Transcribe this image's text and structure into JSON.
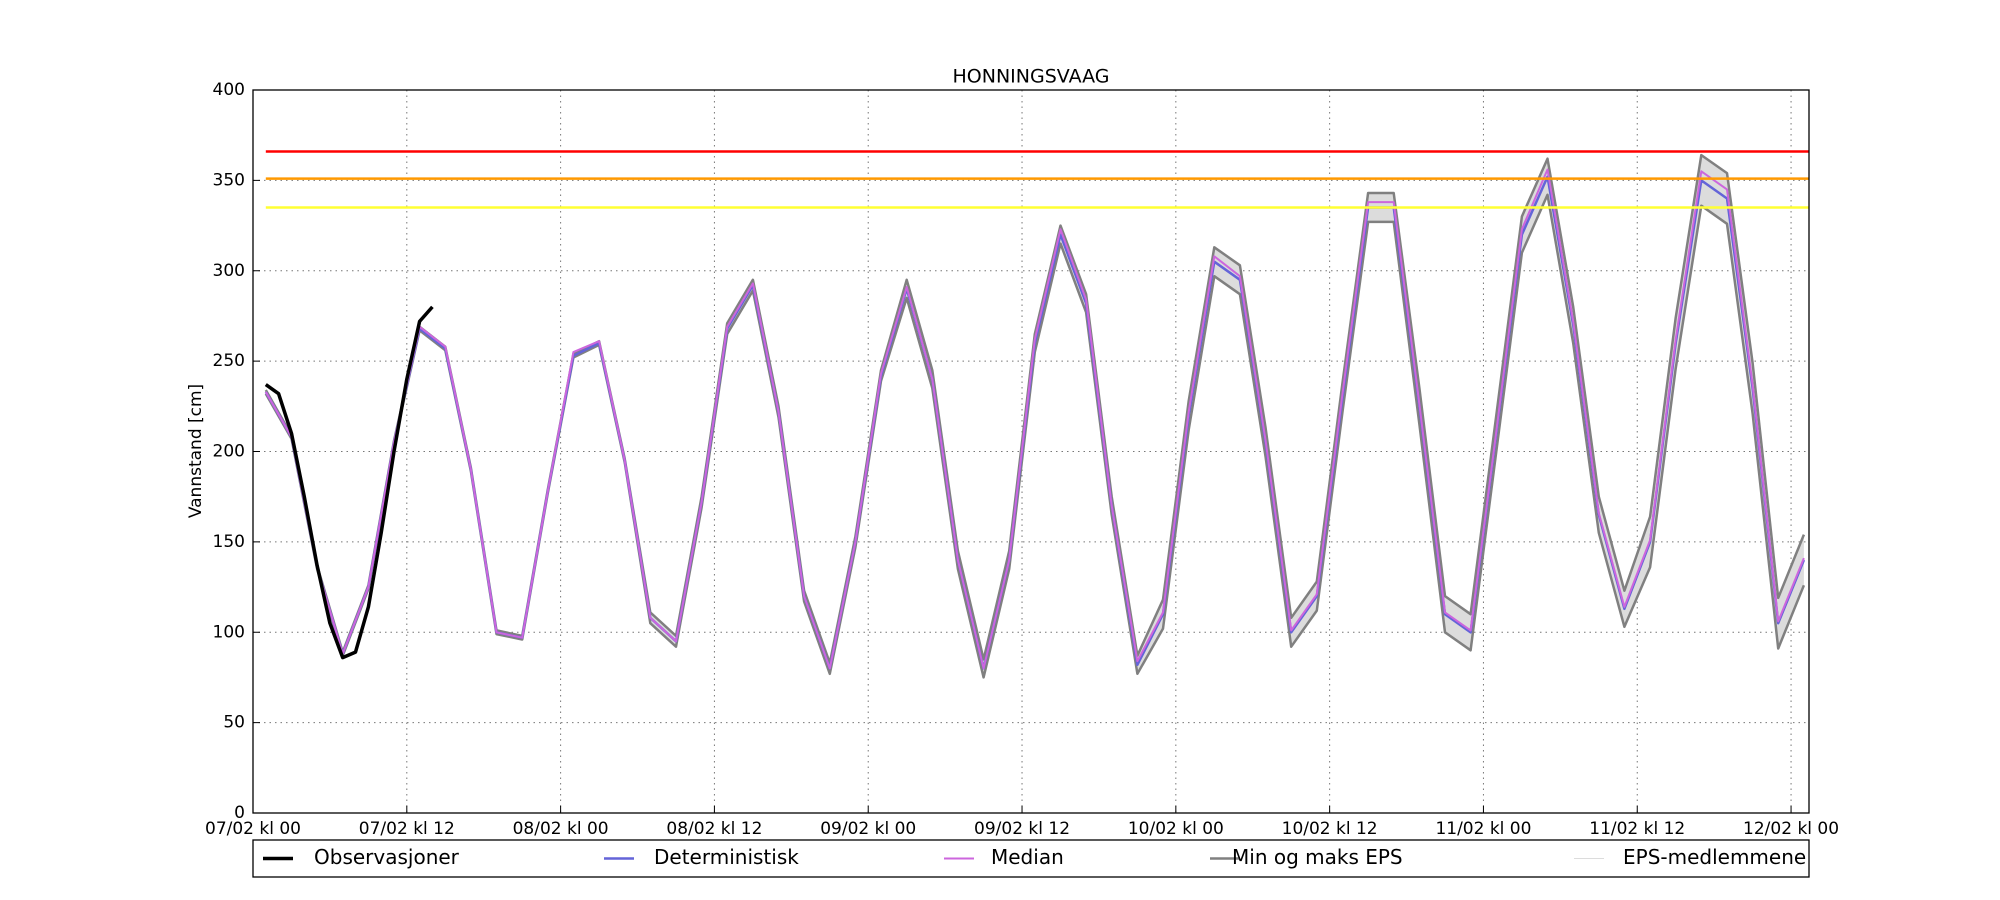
{
  "chart_data": {
    "type": "line",
    "title": "HONNINGSVAAG",
    "y_label": "Vannstand [cm]",
    "xlim": [
      0,
      121.4
    ],
    "ylim": [
      0,
      400
    ],
    "grid": true,
    "yticks": [
      0,
      50,
      100,
      150,
      200,
      250,
      300,
      350,
      400
    ],
    "xticks": [
      {
        "value": 0,
        "label": "07/02 kl 00"
      },
      {
        "value": 12,
        "label": "07/02 kl 12"
      },
      {
        "value": 24,
        "label": "08/02 kl 00"
      },
      {
        "value": 36,
        "label": "08/02 kl 12"
      },
      {
        "value": 48,
        "label": "09/02 kl 00"
      },
      {
        "value": 60,
        "label": "09/02 kl 12"
      },
      {
        "value": 72,
        "label": "10/02 kl 00"
      },
      {
        "value": 84,
        "label": "10/02 kl 12"
      },
      {
        "value": 96,
        "label": "11/02 kl 00"
      },
      {
        "value": 108,
        "label": "11/02 kl 12"
      },
      {
        "value": 120,
        "label": "12/02 kl 00"
      }
    ],
    "thresholds": [
      {
        "value": 366,
        "color": "#ff0000"
      },
      {
        "value": 351,
        "color": "#ff9900"
      },
      {
        "value": 335,
        "color": "#ffff33"
      }
    ],
    "threshold_start": 1,
    "x": [
      1,
      3,
      5,
      7,
      9,
      11,
      13,
      15,
      17,
      19,
      21,
      23,
      25,
      27,
      29,
      31,
      33,
      35,
      37,
      39,
      41,
      43,
      45,
      47,
      49,
      51,
      53,
      55,
      57,
      59,
      61,
      63,
      65,
      67,
      69,
      71,
      73,
      75,
      77,
      79,
      81,
      83,
      85,
      87,
      89,
      91,
      93,
      95,
      97,
      99,
      101,
      103,
      105,
      107,
      109,
      111,
      113,
      115,
      117,
      119,
      121
    ],
    "series": [
      {
        "name": "Observasjoner",
        "color": "#000000",
        "x": [
          1,
          2,
          3,
          4,
          5,
          6,
          7,
          8,
          9,
          10,
          11,
          12,
          13,
          14
        ],
        "values": [
          237,
          232,
          210,
          175,
          137,
          105,
          86,
          89,
          114,
          155,
          200,
          240,
          272,
          280
        ]
      },
      {
        "name": "Deterministisk",
        "color": "#6464d8",
        "values": [
          233,
          208,
          136,
          88,
          125,
          205,
          268,
          257,
          190,
          100,
          97,
          178,
          253,
          260,
          195,
          108,
          95,
          172,
          268,
          292,
          222,
          120,
          80,
          150,
          242,
          290,
          240,
          140,
          80,
          140,
          260,
          320,
          282,
          170,
          82,
          110,
          220,
          305,
          295,
          205,
          100,
          120,
          230,
          335,
          335,
          225,
          110,
          100,
          210,
          320,
          352,
          270,
          165,
          113,
          150,
          260,
          350,
          340,
          235,
          105,
          140
        ]
      },
      {
        "name": "Median",
        "color": "#cc66dd",
        "values": [
          233,
          208,
          136,
          88,
          125,
          205,
          269,
          258,
          190,
          100,
          97,
          178,
          255,
          261,
          195,
          108,
          95,
          172,
          269,
          293,
          222,
          120,
          80,
          150,
          243,
          291,
          240,
          140,
          80,
          140,
          262,
          323,
          284,
          170,
          84,
          111,
          222,
          308,
          297,
          206,
          101,
          121,
          232,
          338,
          338,
          226,
          111,
          101,
          211,
          323,
          356,
          272,
          166,
          114,
          151,
          262,
          355,
          345,
          237,
          106,
          141
        ]
      },
      {
        "name": "Min og maks EPS",
        "color": "#808080",
        "min": [
          232,
          207,
          135,
          87,
          124,
          204,
          267,
          256,
          189,
          99,
          96,
          177,
          252,
          259,
          194,
          105,
          92,
          169,
          265,
          289,
          219,
          117,
          77,
          147,
          239,
          285,
          235,
          135,
          75,
          135,
          255,
          315,
          277,
          165,
          77,
          102,
          212,
          297,
          287,
          197,
          92,
          112,
          222,
          327,
          327,
          215,
          100,
          90,
          200,
          310,
          342,
          260,
          155,
          103,
          136,
          246,
          336,
          326,
          221,
          91,
          126
        ],
        "max": [
          234,
          209,
          137,
          89,
          126,
          206,
          269,
          258,
          191,
          101,
          98,
          179,
          254,
          261,
          196,
          111,
          98,
          175,
          271,
          295,
          225,
          123,
          83,
          153,
          245,
          295,
          245,
          145,
          85,
          145,
          265,
          325,
          287,
          175,
          87,
          118,
          228,
          313,
          303,
          213,
          108,
          128,
          238,
          343,
          343,
          235,
          120,
          110,
          220,
          330,
          362,
          280,
          175,
          123,
          164,
          274,
          364,
          354,
          249,
          119,
          154
        ]
      },
      {
        "name": "EPS-medlemmene",
        "color": "#dcdcdc"
      }
    ]
  }
}
